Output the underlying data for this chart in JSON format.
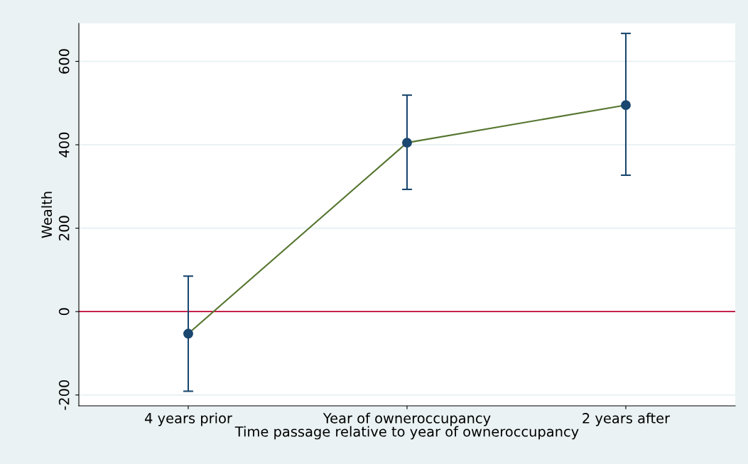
{
  "chart_data": {
    "type": "line",
    "xlabel": "Time passage relative to year of owneroccupancy",
    "ylabel": "Wealth",
    "categories": [
      "4 years prior",
      "Year of owneroccupancy",
      "2 years after"
    ],
    "series": [
      {
        "color": "#55752f",
        "values": [
          -53,
          405,
          495
        ],
        "errors": [
          [
            -191,
            85
          ],
          [
            293,
            519
          ],
          [
            327,
            667
          ]
        ]
      }
    ],
    "ylim": [
      -226,
      691
    ],
    "yticks": [
      {
        "value": -200,
        "label": "-200"
      },
      0,
      200,
      400,
      600
    ],
    "grid": "y",
    "marker": "circle",
    "line_style": "solid",
    "ref_lines": [
      {
        "axis": "y",
        "value": 0,
        "color": "#c10534"
      }
    ]
  }
}
